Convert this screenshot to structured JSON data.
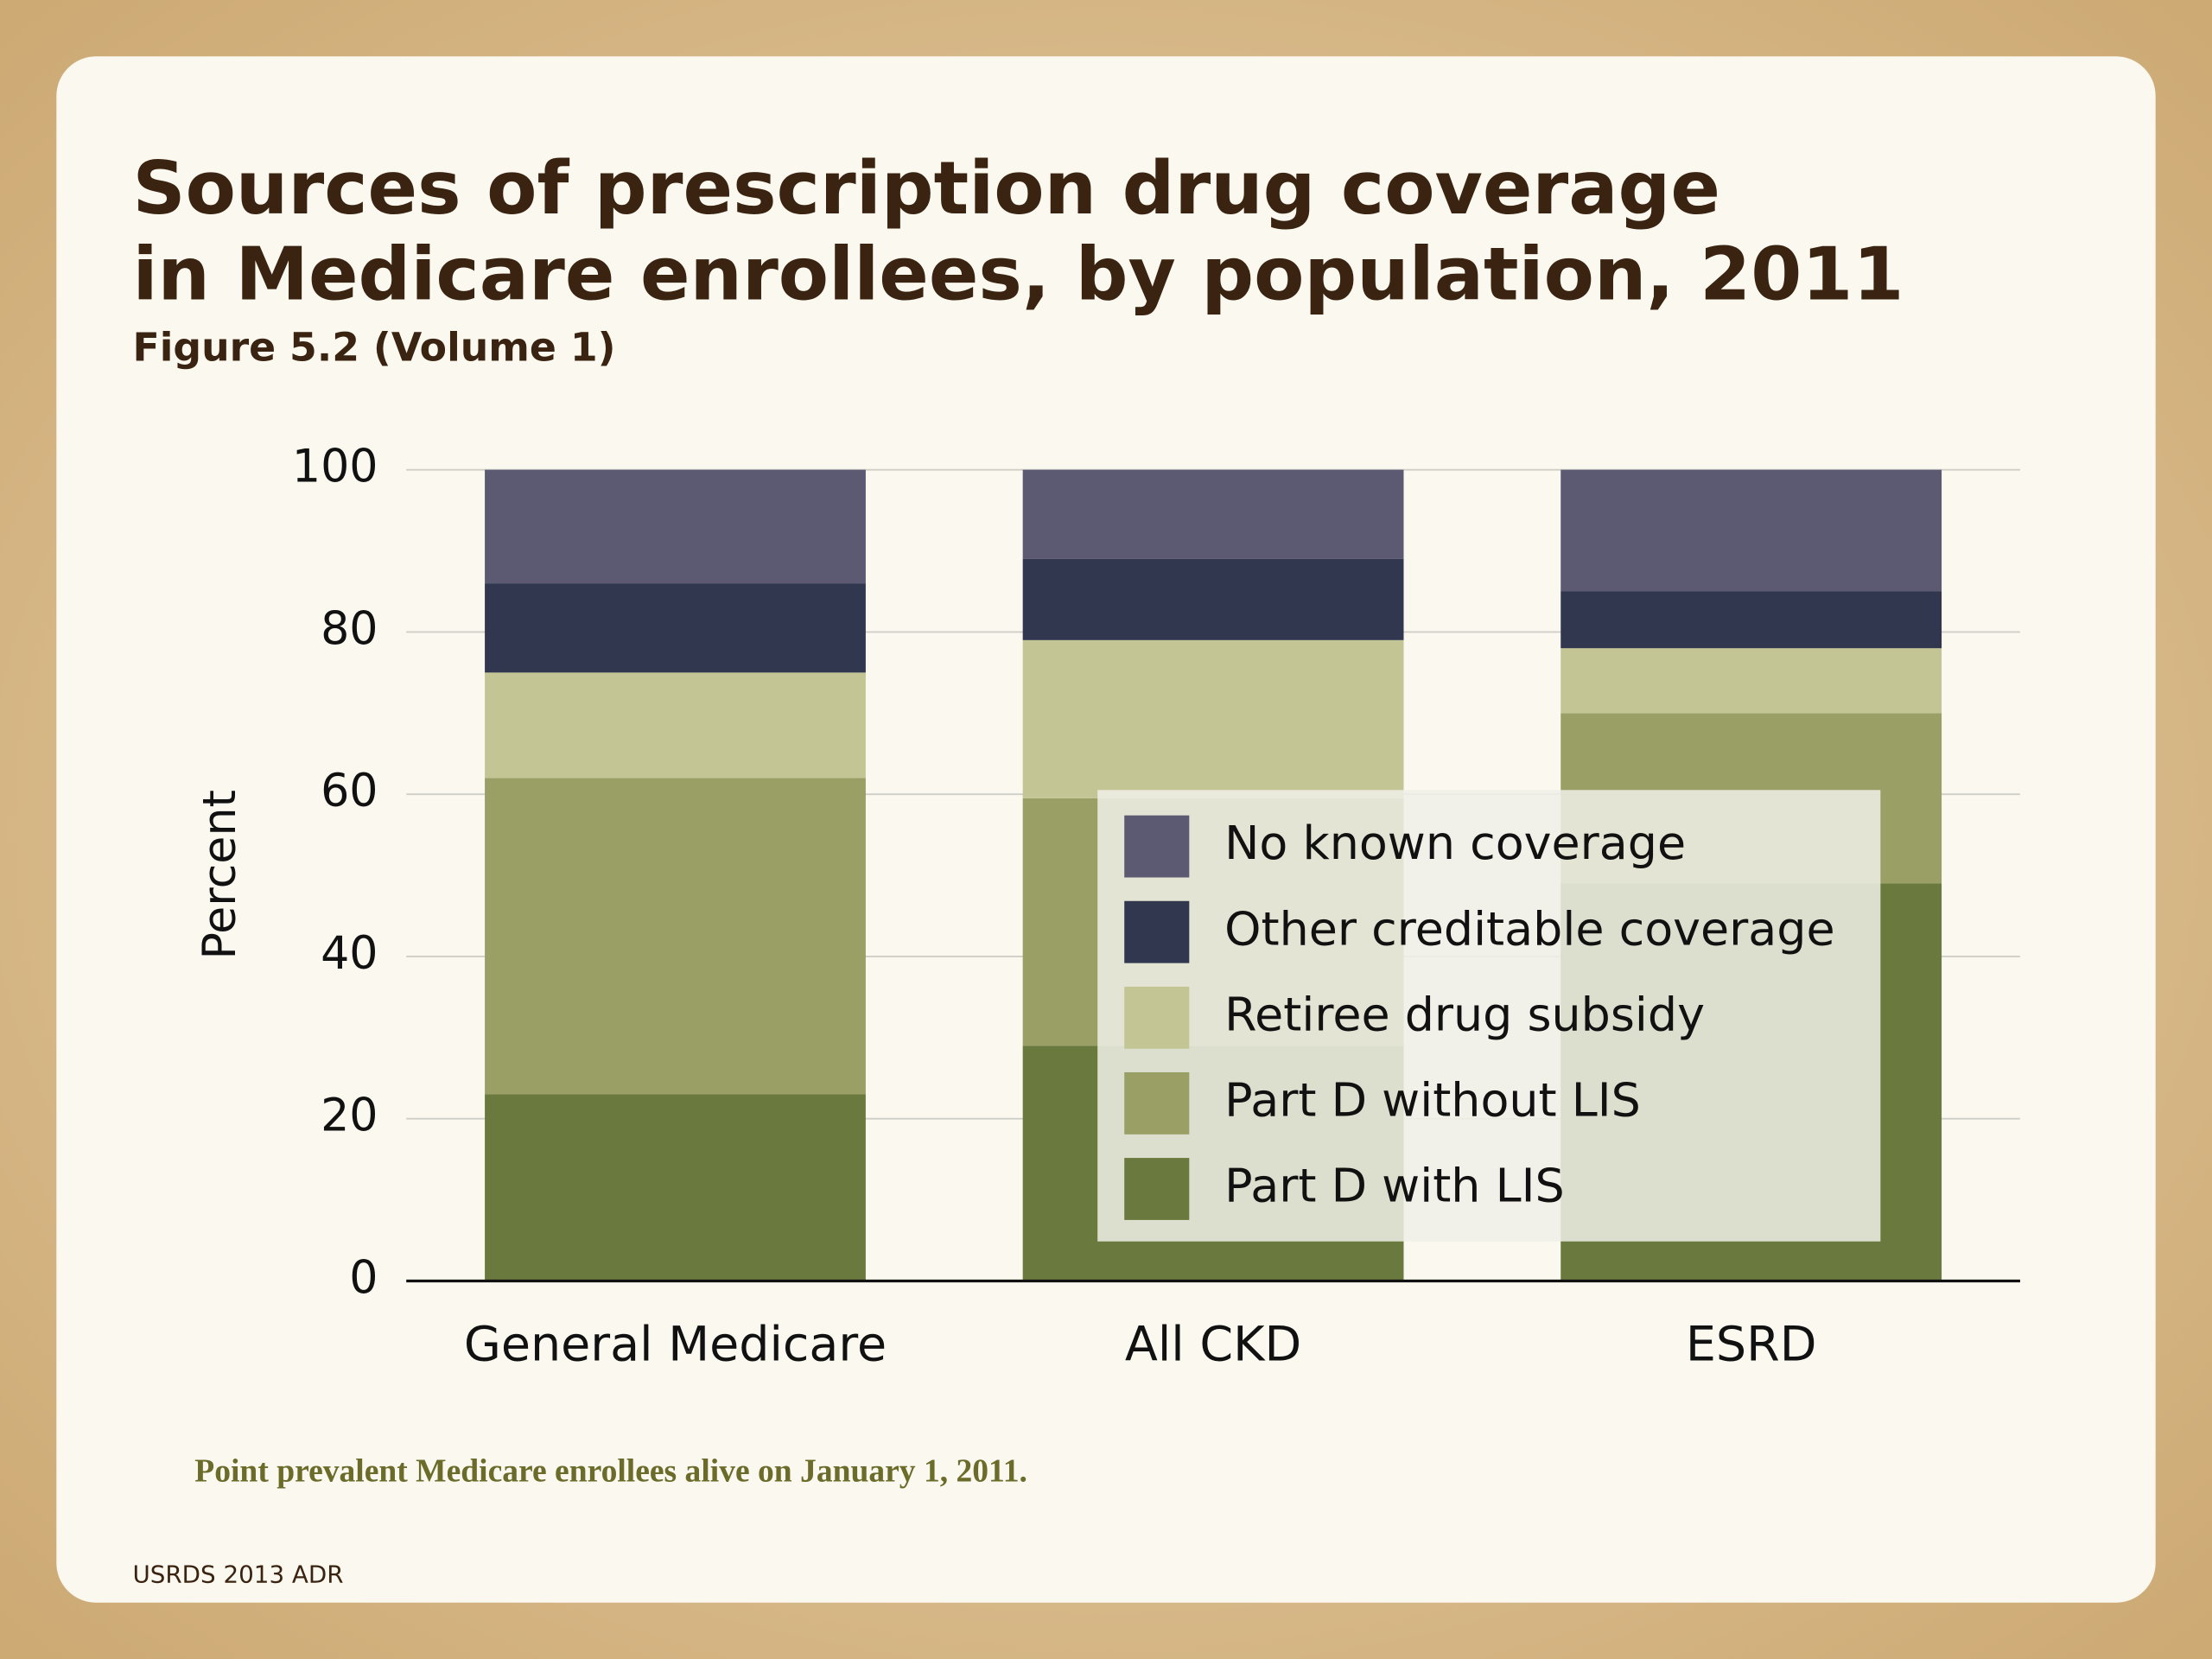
{
  "chart_data": {
    "type": "stacked_bar",
    "title_lines": [
      "Sources of prescription drug coverage",
      "in Medicare enrollees, by population, 2011"
    ],
    "subtitle": "Figure 5.2 (Volume 1)",
    "y_label": "Percent",
    "note": "Point prevalent Medicare enrollees alive on January 1, 2011.",
    "source": "USRDS 2013 ADR",
    "categories": [
      "General Medicare",
      "All CKD",
      "ESRD"
    ],
    "series": [
      {
        "name": "Part D with LIS",
        "color": "#6a7a3f",
        "values": [
          23,
          29,
          49
        ]
      },
      {
        "name": "Part D without LIS",
        "color": "#9a9f66",
        "values": [
          39,
          30.5,
          21
        ]
      },
      {
        "name": "Retiree drug subsidy",
        "color": "#c4c594",
        "values": [
          13,
          19.5,
          8
        ]
      },
      {
        "name": "Other creditable coverage",
        "color": "#323750",
        "values": [
          11,
          10,
          7
        ]
      },
      {
        "name": "No known coverage",
        "color": "#5c5a72",
        "values": [
          14,
          11,
          15
        ]
      }
    ],
    "ylim": [
      0,
      100
    ],
    "yticks": [
      0,
      20,
      40,
      60,
      80,
      100
    ],
    "grid": true
  }
}
